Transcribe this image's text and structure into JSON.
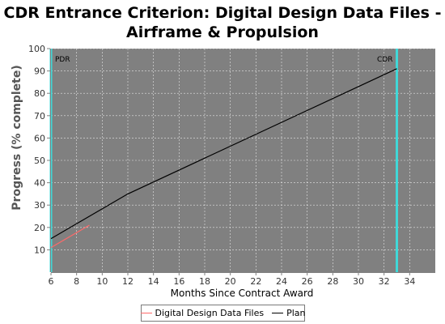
{
  "chart_data": {
    "type": "line",
    "title_line1": "CDR Entrance Criterion: Digital Design Data Files -",
    "title_line2": "Airframe & Propulsion",
    "xlabel": "Months Since Contract Award",
    "ylabel": "Progress (% complete)",
    "xlim": [
      6,
      36
    ],
    "ylim": [
      0,
      100
    ],
    "xticks": [
      6,
      8,
      10,
      12,
      14,
      16,
      18,
      20,
      22,
      24,
      26,
      28,
      30,
      32,
      34
    ],
    "yticks": [
      10,
      20,
      30,
      40,
      50,
      60,
      70,
      80,
      90,
      100
    ],
    "grid": true,
    "plot_background": "#808080",
    "series": [
      {
        "name": "Digital Design Data Files",
        "color": "#ff6a6a",
        "x": [
          6,
          9
        ],
        "y": [
          11,
          21
        ]
      },
      {
        "name": "Plan",
        "color": "#000000",
        "x": [
          6,
          12,
          33
        ],
        "y": [
          15,
          35,
          91
        ]
      }
    ],
    "markers": [
      {
        "label": "PDR",
        "x": 6,
        "color": "#40d8d8",
        "label_side": "right"
      },
      {
        "label": "CDR",
        "x": 33,
        "color": "#40d8d8",
        "label_side": "left"
      }
    ],
    "legend_position": "bottom"
  }
}
